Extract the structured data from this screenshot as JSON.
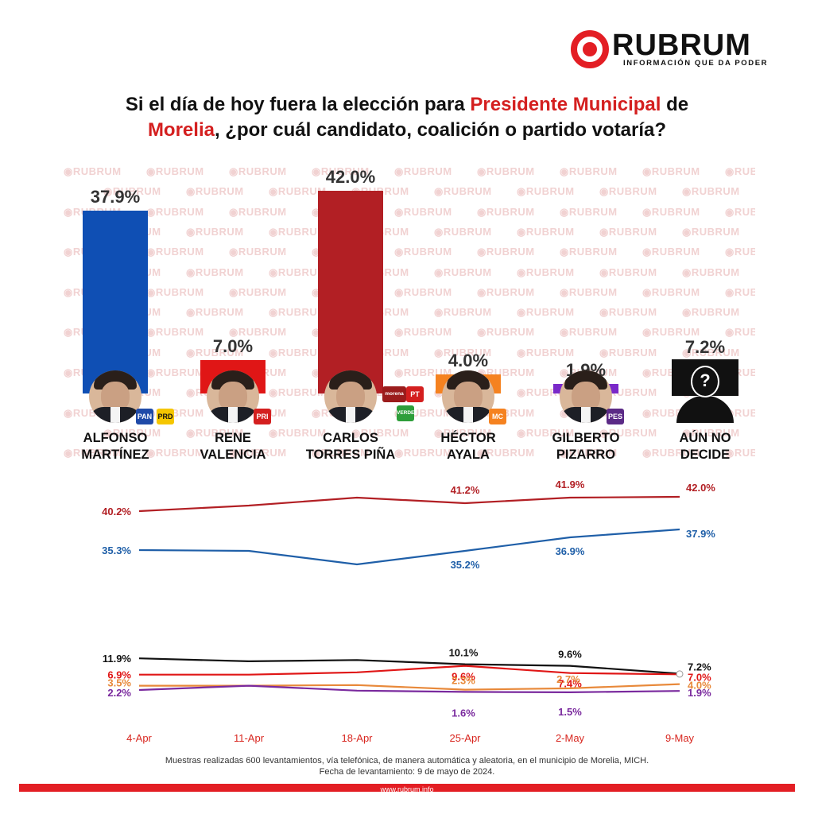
{
  "brand": {
    "name": "RUBRUM",
    "tagline": "INFORMACIÓN QUE DA PODER",
    "accent": "#e31e24",
    "watermark": "RUBRUM"
  },
  "title": {
    "part1": "Si el día de hoy fuera la elección para ",
    "highlight1": "Presidente Municipal",
    "part2": " de",
    "highlight2": "Morelia",
    "part3": ", ¿por cuál candidato, coalición o partido votaría?"
  },
  "chart_data": [
    {
      "type": "bar",
      "categories": [
        "ALFONSO MARTÍNEZ",
        "RENE VALENCIA",
        "CARLOS TORRES PIÑA",
        "HÉCTOR AYALA",
        "GILBERTO PIZARRO",
        "AÚN NO DECIDE"
      ],
      "category_lines": [
        [
          "ALFONSO",
          "MARTÍNEZ"
        ],
        [
          "RENE",
          "VALENCIA"
        ],
        [
          "CARLOS",
          "TORRES PIÑA"
        ],
        [
          "HÉCTOR",
          "AYALA"
        ],
        [
          "GILBERTO",
          "PIZARRO"
        ],
        [
          "AÚN NO",
          "DECIDE"
        ]
      ],
      "values": [
        37.9,
        7.0,
        42.0,
        4.0,
        1.9,
        7.2
      ],
      "value_labels": [
        "37.9%",
        "7.0%",
        "42.0%",
        "4.0%",
        "1.9%",
        "7.2%"
      ],
      "colors": [
        "#0f4fb4",
        "#e01616",
        "#b21f24",
        "#f58220",
        "#7a29c9",
        "#111111"
      ],
      "parties": [
        [
          "PAN",
          "PRD"
        ],
        [
          "PRI"
        ],
        [
          "morena",
          "PT",
          "VERDE"
        ],
        [
          "MC"
        ],
        [
          "PES"
        ],
        []
      ],
      "ylim": [
        0,
        42
      ]
    },
    {
      "type": "line",
      "x": [
        "4-Apr",
        "11-Apr",
        "18-Apr",
        "25-Apr",
        "2-May",
        "9-May"
      ],
      "ylim": [
        0,
        45
      ],
      "series": [
        {
          "color": "#b21f24",
          "values": [
            40.2,
            40.9,
            41.9,
            41.2,
            41.9,
            42.0
          ],
          "labels": [
            "40.2%",
            "",
            "",
            "41.2%",
            "41.9%",
            "42.0%"
          ]
        },
        {
          "color": "#1f5fa8",
          "values": [
            35.3,
            35.2,
            33.5,
            35.2,
            36.9,
            37.9
          ],
          "labels": [
            "35.3%",
            "",
            "",
            "35.2%",
            "36.9%",
            "37.9%"
          ]
        }
      ]
    },
    {
      "type": "line",
      "x": [
        "4-Apr",
        "11-Apr",
        "18-Apr",
        "25-Apr",
        "2-May",
        "9-May"
      ],
      "ylim": [
        0,
        13
      ],
      "series": [
        {
          "color": "#111111",
          "values": [
            11.9,
            11.0,
            11.4,
            10.1,
            9.6,
            7.2
          ],
          "labels": [
            "11.9%",
            "",
            "",
            "10.1%",
            "9.6%",
            "7.2%"
          ]
        },
        {
          "color": "#e01616",
          "values": [
            6.9,
            6.9,
            7.6,
            9.6,
            7.4,
            7.0
          ],
          "labels": [
            "6.9%",
            "",
            "",
            "9.6%",
            "7.4%",
            "7.0%"
          ]
        },
        {
          "color": "#e8893a",
          "values": [
            3.5,
            3.5,
            3.7,
            2.3,
            2.7,
            4.0
          ],
          "labels": [
            "3.5%",
            "",
            "",
            "2.3%",
            "2.7%",
            "4.0%"
          ]
        },
        {
          "color": "#7a2a9e",
          "values": [
            2.2,
            3.5,
            2.0,
            1.6,
            1.5,
            1.9
          ],
          "labels": [
            "2.2%",
            "",
            "",
            "1.6%",
            "1.5%",
            "1.9%"
          ]
        }
      ]
    }
  ],
  "footnote": {
    "line1": "Muestras realizadas 600 levantamientos, vía telefónica, de manera automática y aleatoria, en el municipio de Morelia, MICH.",
    "line2": "Fecha de levantamiento: 9 de mayo de 2024."
  },
  "url": "www.rubrum.info"
}
